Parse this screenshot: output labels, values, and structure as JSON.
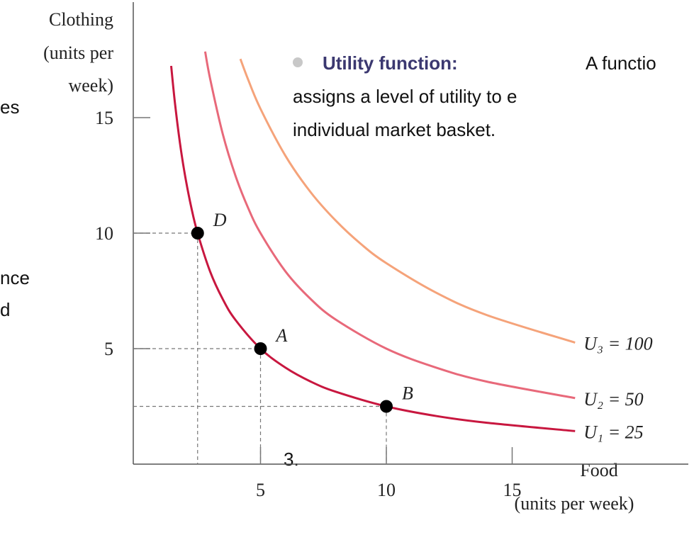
{
  "chart_data": {
    "type": "line",
    "y_label": [
      "Clothing",
      "(units per",
      "week)"
    ],
    "x_label": [
      "Food",
      "(units per week)"
    ],
    "xlim": [
      0,
      22
    ],
    "ylim": [
      0,
      20
    ],
    "xticks": [
      5,
      10,
      15
    ],
    "yticks": [
      5,
      10,
      15
    ],
    "series": [
      {
        "name": "U₁ = 25",
        "color": "#c8173f",
        "x": [
          1.45,
          1.6,
          1.8,
          2,
          2.25,
          2.5,
          3,
          3.5,
          4,
          5,
          6,
          7,
          8,
          10,
          12,
          14,
          17.5
        ],
        "values": [
          17.24,
          15.63,
          13.89,
          12.5,
          11.11,
          10,
          8.33,
          7.14,
          6.25,
          5,
          4.17,
          3.57,
          3.13,
          2.5,
          2.08,
          1.79,
          1.43
        ]
      },
      {
        "name": "U₂ = 50",
        "color": "#e8697a",
        "x": [
          2.8,
          3,
          3.5,
          4,
          4.5,
          5,
          6,
          7,
          8,
          10,
          12,
          14,
          17.5
        ],
        "values": [
          17.86,
          16.67,
          14.29,
          12.5,
          11.11,
          10,
          8.33,
          7.14,
          6.25,
          5,
          4.17,
          3.57,
          2.86
        ]
      },
      {
        "name": "U₃ = 100",
        "color": "#f5a37a",
        "x": [
          4.2,
          4.5,
          5,
          6,
          7,
          8,
          9,
          10,
          12,
          14,
          17.5
        ],
        "values": [
          17.54,
          16.67,
          15.38,
          13.33,
          11.76,
          10.53,
          9.52,
          8.7,
          7.41,
          6.45,
          5.26
        ]
      }
    ],
    "points": [
      {
        "label": "D",
        "x": 2.5,
        "y": 10
      },
      {
        "label": "A",
        "x": 5,
        "y": 5
      },
      {
        "label": "B",
        "x": 10,
        "y": 2.5
      }
    ]
  },
  "slide": {
    "left_fragments": [
      "es",
      "nce",
      "d",
      "3."
    ],
    "bullet": {
      "term": "Utility function:",
      "lines": [
        "A functio",
        "assigns a level of utility to e",
        "individual market basket."
      ]
    }
  }
}
